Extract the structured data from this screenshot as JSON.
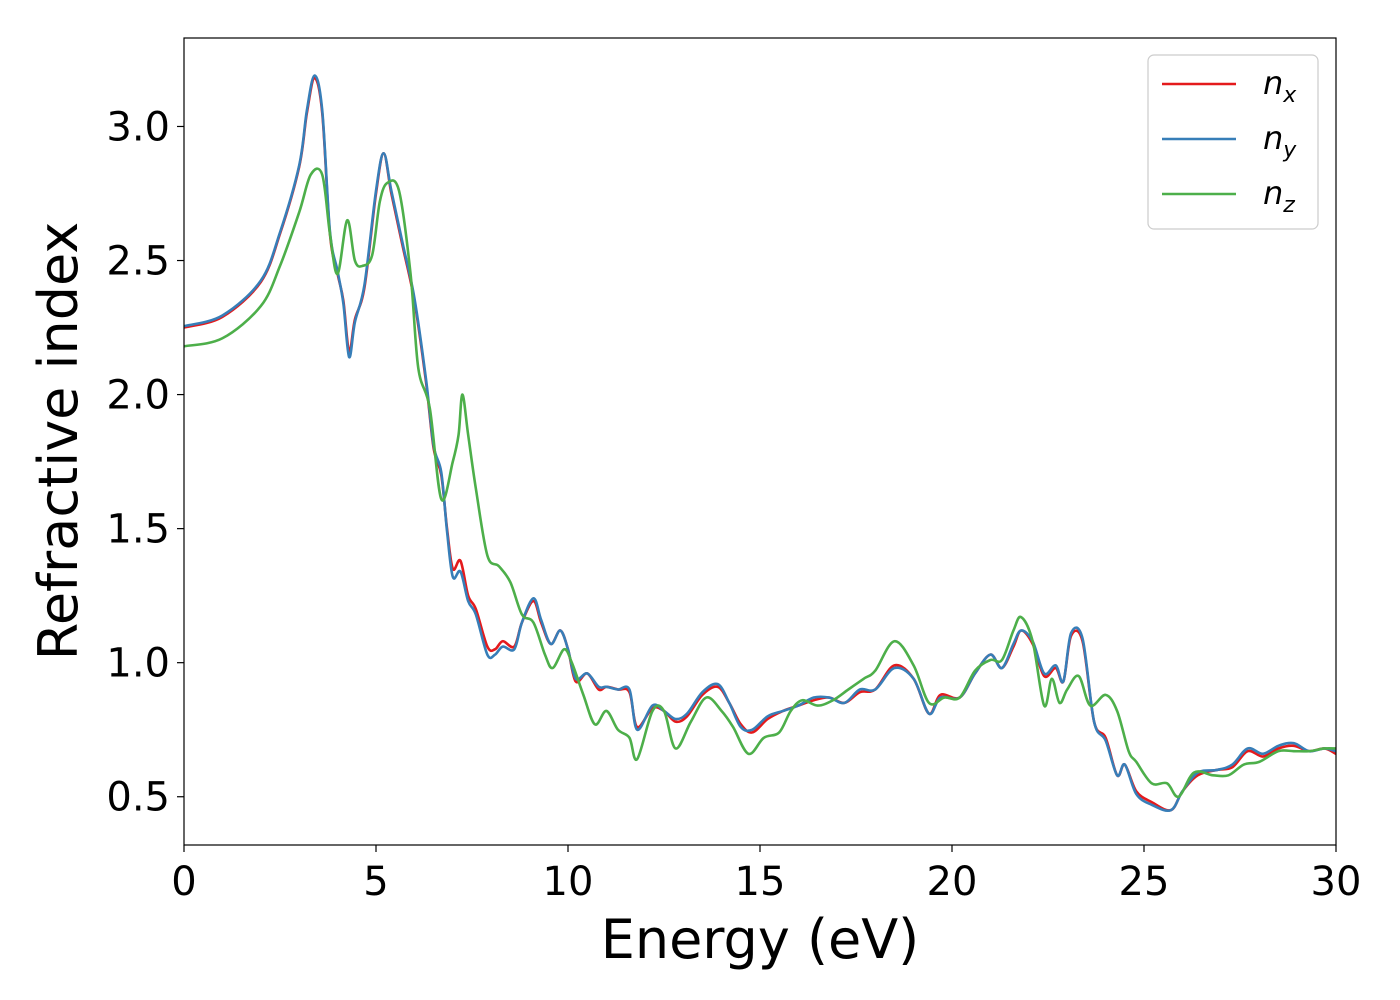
{
  "chart_data": {
    "type": "line",
    "title": "",
    "xlabel": "Energy (eV)",
    "ylabel": "Refractive index",
    "xlim": [
      0,
      30
    ],
    "ylim": [
      0.32,
      3.33
    ],
    "xticks": [
      0,
      5,
      10,
      15,
      20,
      25,
      30
    ],
    "xtick_labels": [
      "0",
      "5",
      "10",
      "15",
      "20",
      "25",
      "30"
    ],
    "yticks": [
      0.5,
      1.0,
      1.5,
      2.0,
      2.5,
      3.0
    ],
    "ytick_labels": [
      "0.5",
      "1.0",
      "1.5",
      "2.0",
      "2.5",
      "3.0"
    ],
    "grid": false,
    "legend_position": "top-right",
    "series": [
      {
        "name": "n",
        "subscript": "x",
        "color": "#e41a1c",
        "points": [
          [
            0,
            2.25
          ],
          [
            1,
            2.29
          ],
          [
            2,
            2.42
          ],
          [
            2.5,
            2.6
          ],
          [
            3,
            2.85
          ],
          [
            3.2,
            3.05
          ],
          [
            3.4,
            3.18
          ],
          [
            3.6,
            3.05
          ],
          [
            3.8,
            2.6
          ],
          [
            4,
            2.45
          ],
          [
            4.15,
            2.35
          ],
          [
            4.3,
            2.16
          ],
          [
            4.45,
            2.28
          ],
          [
            4.7,
            2.4
          ],
          [
            5,
            2.75
          ],
          [
            5.2,
            2.9
          ],
          [
            5.4,
            2.75
          ],
          [
            5.7,
            2.55
          ],
          [
            6,
            2.35
          ],
          [
            6.3,
            2.05
          ],
          [
            6.5,
            1.8
          ],
          [
            6.7,
            1.7
          ],
          [
            6.85,
            1.5
          ],
          [
            7,
            1.35
          ],
          [
            7.2,
            1.38
          ],
          [
            7.4,
            1.25
          ],
          [
            7.6,
            1.2
          ],
          [
            7.9,
            1.06
          ],
          [
            8.1,
            1.05
          ],
          [
            8.3,
            1.08
          ],
          [
            8.6,
            1.06
          ],
          [
            8.8,
            1.15
          ],
          [
            9.1,
            1.23
          ],
          [
            9.3,
            1.15
          ],
          [
            9.55,
            1.07
          ],
          [
            9.8,
            1.12
          ],
          [
            10,
            1.05
          ],
          [
            10.2,
            0.93
          ],
          [
            10.5,
            0.96
          ],
          [
            10.8,
            0.9
          ],
          [
            11,
            0.91
          ],
          [
            11.3,
            0.9
          ],
          [
            11.6,
            0.89
          ],
          [
            11.8,
            0.76
          ],
          [
            12.2,
            0.83
          ],
          [
            12.5,
            0.82
          ],
          [
            12.8,
            0.78
          ],
          [
            13.1,
            0.8
          ],
          [
            13.5,
            0.88
          ],
          [
            13.9,
            0.91
          ],
          [
            14.2,
            0.85
          ],
          [
            14.5,
            0.77
          ],
          [
            14.8,
            0.74
          ],
          [
            15.2,
            0.79
          ],
          [
            15.6,
            0.82
          ],
          [
            16,
            0.84
          ],
          [
            16.4,
            0.86
          ],
          [
            16.8,
            0.87
          ],
          [
            17.2,
            0.85
          ],
          [
            17.6,
            0.89
          ],
          [
            18,
            0.9
          ],
          [
            18.5,
            0.99
          ],
          [
            19,
            0.94
          ],
          [
            19.4,
            0.81
          ],
          [
            19.7,
            0.88
          ],
          [
            20.2,
            0.87
          ],
          [
            20.6,
            0.96
          ],
          [
            21,
            1.03
          ],
          [
            21.3,
            0.98
          ],
          [
            21.6,
            1.06
          ],
          [
            21.8,
            1.12
          ],
          [
            22.1,
            1.07
          ],
          [
            22.4,
            0.95
          ],
          [
            22.7,
            0.98
          ],
          [
            22.9,
            0.93
          ],
          [
            23.1,
            1.1
          ],
          [
            23.4,
            1.08
          ],
          [
            23.7,
            0.78
          ],
          [
            24,
            0.72
          ],
          [
            24.3,
            0.58
          ],
          [
            24.5,
            0.62
          ],
          [
            24.8,
            0.52
          ],
          [
            25.2,
            0.48
          ],
          [
            25.7,
            0.45
          ],
          [
            26,
            0.52
          ],
          [
            26.4,
            0.58
          ],
          [
            26.9,
            0.6
          ],
          [
            27.3,
            0.61
          ],
          [
            27.7,
            0.67
          ],
          [
            28.1,
            0.65
          ],
          [
            28.5,
            0.68
          ],
          [
            28.9,
            0.69
          ],
          [
            29.3,
            0.67
          ],
          [
            29.7,
            0.68
          ],
          [
            30,
            0.66
          ]
        ]
      },
      {
        "name": "n",
        "subscript": "y",
        "color": "#377eb8",
        "points": [
          [
            0,
            2.255
          ],
          [
            1,
            2.295
          ],
          [
            2,
            2.425
          ],
          [
            2.5,
            2.605
          ],
          [
            3,
            2.855
          ],
          [
            3.2,
            3.06
          ],
          [
            3.4,
            3.19
          ],
          [
            3.6,
            3.06
          ],
          [
            3.8,
            2.61
          ],
          [
            4,
            2.46
          ],
          [
            4.15,
            2.34
          ],
          [
            4.3,
            2.14
          ],
          [
            4.45,
            2.27
          ],
          [
            4.7,
            2.41
          ],
          [
            5,
            2.76
          ],
          [
            5.2,
            2.9
          ],
          [
            5.4,
            2.76
          ],
          [
            5.7,
            2.56
          ],
          [
            6,
            2.36
          ],
          [
            6.3,
            2.06
          ],
          [
            6.5,
            1.81
          ],
          [
            6.7,
            1.71
          ],
          [
            6.85,
            1.49
          ],
          [
            7,
            1.32
          ],
          [
            7.2,
            1.34
          ],
          [
            7.4,
            1.23
          ],
          [
            7.6,
            1.18
          ],
          [
            7.9,
            1.03
          ],
          [
            8.1,
            1.03
          ],
          [
            8.3,
            1.06
          ],
          [
            8.6,
            1.05
          ],
          [
            8.8,
            1.15
          ],
          [
            9.1,
            1.24
          ],
          [
            9.3,
            1.16
          ],
          [
            9.55,
            1.07
          ],
          [
            9.8,
            1.12
          ],
          [
            10,
            1.05
          ],
          [
            10.2,
            0.94
          ],
          [
            10.5,
            0.96
          ],
          [
            10.8,
            0.91
          ],
          [
            11,
            0.91
          ],
          [
            11.3,
            0.9
          ],
          [
            11.6,
            0.9
          ],
          [
            11.8,
            0.75
          ],
          [
            12.2,
            0.84
          ],
          [
            12.5,
            0.82
          ],
          [
            12.8,
            0.79
          ],
          [
            13.1,
            0.81
          ],
          [
            13.5,
            0.89
          ],
          [
            13.9,
            0.92
          ],
          [
            14.2,
            0.85
          ],
          [
            14.5,
            0.76
          ],
          [
            14.8,
            0.75
          ],
          [
            15.2,
            0.8
          ],
          [
            15.6,
            0.82
          ],
          [
            16,
            0.84
          ],
          [
            16.4,
            0.87
          ],
          [
            16.8,
            0.87
          ],
          [
            17.2,
            0.85
          ],
          [
            17.6,
            0.9
          ],
          [
            18,
            0.9
          ],
          [
            18.5,
            0.98
          ],
          [
            19,
            0.94
          ],
          [
            19.4,
            0.81
          ],
          [
            19.7,
            0.87
          ],
          [
            20.2,
            0.87
          ],
          [
            20.6,
            0.96
          ],
          [
            21,
            1.03
          ],
          [
            21.3,
            0.98
          ],
          [
            21.6,
            1.07
          ],
          [
            21.8,
            1.12
          ],
          [
            22.1,
            1.08
          ],
          [
            22.4,
            0.96
          ],
          [
            22.7,
            0.99
          ],
          [
            22.9,
            0.93
          ],
          [
            23.1,
            1.11
          ],
          [
            23.4,
            1.09
          ],
          [
            23.7,
            0.78
          ],
          [
            24,
            0.71
          ],
          [
            24.3,
            0.58
          ],
          [
            24.5,
            0.62
          ],
          [
            24.8,
            0.51
          ],
          [
            25.2,
            0.47
          ],
          [
            25.7,
            0.45
          ],
          [
            26,
            0.52
          ],
          [
            26.4,
            0.59
          ],
          [
            26.9,
            0.6
          ],
          [
            27.3,
            0.62
          ],
          [
            27.7,
            0.68
          ],
          [
            28.1,
            0.66
          ],
          [
            28.5,
            0.69
          ],
          [
            28.9,
            0.7
          ],
          [
            29.3,
            0.67
          ],
          [
            29.7,
            0.68
          ],
          [
            30,
            0.67
          ]
        ]
      },
      {
        "name": "n",
        "subscript": "z",
        "color": "#4daf4a",
        "points": [
          [
            0,
            2.18
          ],
          [
            1,
            2.21
          ],
          [
            2,
            2.33
          ],
          [
            2.5,
            2.48
          ],
          [
            3,
            2.68
          ],
          [
            3.3,
            2.82
          ],
          [
            3.6,
            2.82
          ],
          [
            3.8,
            2.6
          ],
          [
            4,
            2.45
          ],
          [
            4.25,
            2.65
          ],
          [
            4.45,
            2.5
          ],
          [
            4.65,
            2.48
          ],
          [
            4.9,
            2.52
          ],
          [
            5.1,
            2.72
          ],
          [
            5.3,
            2.79
          ],
          [
            5.6,
            2.76
          ],
          [
            5.9,
            2.45
          ],
          [
            6.1,
            2.1
          ],
          [
            6.4,
            1.95
          ],
          [
            6.7,
            1.61
          ],
          [
            7,
            1.75
          ],
          [
            7.15,
            1.85
          ],
          [
            7.25,
            2.0
          ],
          [
            7.4,
            1.85
          ],
          [
            7.6,
            1.65
          ],
          [
            7.9,
            1.4
          ],
          [
            8.2,
            1.36
          ],
          [
            8.5,
            1.3
          ],
          [
            8.8,
            1.18
          ],
          [
            9.1,
            1.15
          ],
          [
            9.4,
            1.03
          ],
          [
            9.6,
            0.98
          ],
          [
            9.9,
            1.05
          ],
          [
            10.1,
            1.0
          ],
          [
            10.4,
            0.88
          ],
          [
            10.7,
            0.77
          ],
          [
            11,
            0.82
          ],
          [
            11.3,
            0.75
          ],
          [
            11.6,
            0.72
          ],
          [
            11.8,
            0.64
          ],
          [
            12.2,
            0.82
          ],
          [
            12.5,
            0.82
          ],
          [
            12.8,
            0.68
          ],
          [
            13.2,
            0.78
          ],
          [
            13.6,
            0.87
          ],
          [
            14,
            0.82
          ],
          [
            14.3,
            0.76
          ],
          [
            14.7,
            0.66
          ],
          [
            15.1,
            0.72
          ],
          [
            15.5,
            0.74
          ],
          [
            15.8,
            0.82
          ],
          [
            16.1,
            0.86
          ],
          [
            16.5,
            0.84
          ],
          [
            16.9,
            0.86
          ],
          [
            17.3,
            0.9
          ],
          [
            17.7,
            0.94
          ],
          [
            18,
            0.97
          ],
          [
            18.5,
            1.08
          ],
          [
            19,
            0.99
          ],
          [
            19.4,
            0.85
          ],
          [
            19.8,
            0.87
          ],
          [
            20.2,
            0.87
          ],
          [
            20.6,
            0.97
          ],
          [
            21,
            1.01
          ],
          [
            21.3,
            1.01
          ],
          [
            21.6,
            1.12
          ],
          [
            21.8,
            1.17
          ],
          [
            22.1,
            1.08
          ],
          [
            22.4,
            0.84
          ],
          [
            22.6,
            0.94
          ],
          [
            22.8,
            0.85
          ],
          [
            23,
            0.9
          ],
          [
            23.3,
            0.95
          ],
          [
            23.6,
            0.84
          ],
          [
            24,
            0.88
          ],
          [
            24.3,
            0.82
          ],
          [
            24.6,
            0.67
          ],
          [
            24.8,
            0.63
          ],
          [
            25.2,
            0.55
          ],
          [
            25.6,
            0.55
          ],
          [
            25.9,
            0.5
          ],
          [
            26.3,
            0.59
          ],
          [
            26.8,
            0.58
          ],
          [
            27.2,
            0.58
          ],
          [
            27.6,
            0.62
          ],
          [
            28,
            0.63
          ],
          [
            28.5,
            0.67
          ],
          [
            28.9,
            0.67
          ],
          [
            29.3,
            0.67
          ],
          [
            29.7,
            0.68
          ],
          [
            30,
            0.68
          ]
        ]
      }
    ]
  }
}
